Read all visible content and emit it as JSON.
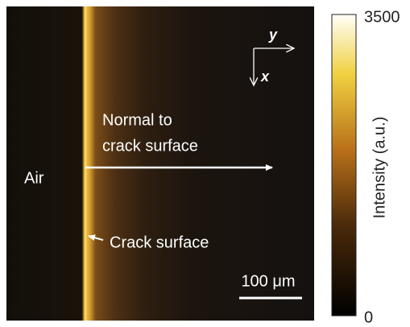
{
  "image": {
    "labels": {
      "air": "Air",
      "normal_line1": "Normal to",
      "normal_line2": "crack surface",
      "crack": "Crack surface",
      "scale_bar": "100 μm",
      "axis_y": "y",
      "axis_x": "x"
    }
  },
  "colorbar": {
    "label": "Intensity (a.u.)",
    "max": 3500,
    "min": 0
  }
}
